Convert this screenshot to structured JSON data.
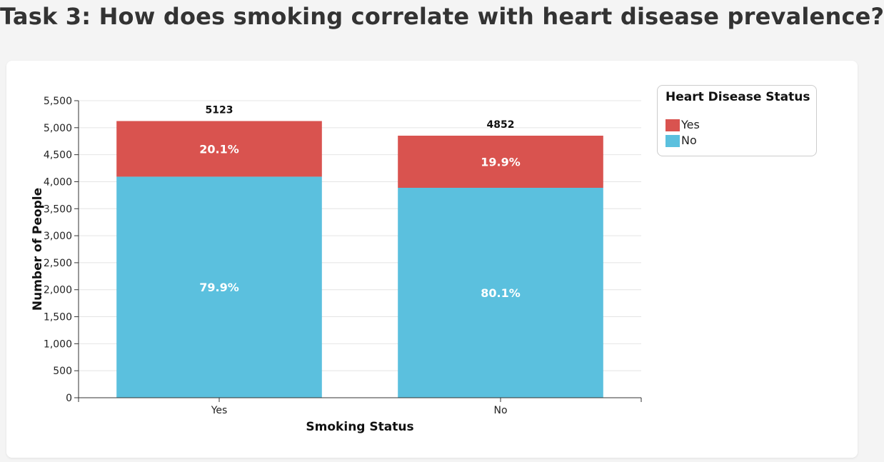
{
  "title": "Task 3: How does smoking correlate with heart disease prevalence?",
  "legend": {
    "title": "Heart Disease Status",
    "items": [
      {
        "label": "Yes",
        "color": "#d9534f"
      },
      {
        "label": "No",
        "color": "#5bc0de"
      }
    ]
  },
  "chart_data": {
    "type": "bar",
    "stacked": true,
    "categories": [
      "Yes",
      "No"
    ],
    "series": [
      {
        "name": "No",
        "values": [
          4093,
          3887
        ],
        "labels": [
          "79.9%",
          "80.1%"
        ],
        "color": "#5bc0de"
      },
      {
        "name": "Yes",
        "values": [
          1030,
          965
        ],
        "labels": [
          "20.1%",
          "19.9%"
        ],
        "color": "#d9534f"
      }
    ],
    "totals": [
      5123,
      4852
    ],
    "total_labels": [
      "5123",
      "4852"
    ],
    "xlabel": "Smoking Status",
    "ylabel": "Number of People",
    "ylim": [
      0,
      5500
    ],
    "yticks": [
      0,
      500,
      1000,
      1500,
      2000,
      2500,
      3000,
      3500,
      4000,
      4500,
      5000,
      5500
    ],
    "ytick_labels": [
      "0",
      "500",
      "1,000",
      "1,500",
      "2,000",
      "2,500",
      "3,000",
      "3,500",
      "4,000",
      "4,500",
      "5,000",
      "5,500"
    ],
    "grid": true,
    "legend_position": "top-right"
  }
}
